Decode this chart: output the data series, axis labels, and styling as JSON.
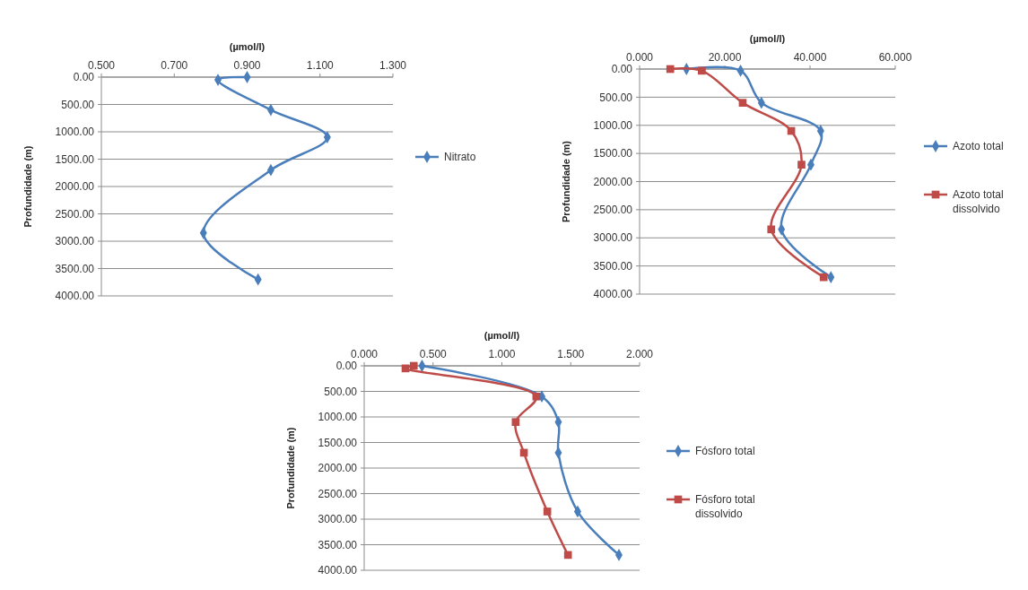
{
  "chart_data": [
    {
      "type": "line",
      "xlabel": "(µmol/l)",
      "ylabel": "Profundidade (m)",
      "legend": "right",
      "grid": "y",
      "xlim": [
        0.5,
        1.3
      ],
      "xticks": [
        {
          "value": 0.5,
          "label": "0.500"
        },
        {
          "value": 0.7,
          "label": "0.700"
        },
        {
          "value": 0.9,
          "label": "0.900"
        },
        {
          "value": 1.1,
          "label": "1.100"
        },
        {
          "value": 1.3,
          "label": "1.300"
        }
      ],
      "ylim": [
        4000,
        0
      ],
      "yticks": [
        {
          "value": 0,
          "label": "0.00"
        },
        {
          "value": 500,
          "label": "500.00"
        },
        {
          "value": 1000,
          "label": "1000.00"
        },
        {
          "value": 1500,
          "label": "1500.00"
        },
        {
          "value": 2000,
          "label": "2000.00"
        },
        {
          "value": 2500,
          "label": "2500.00"
        },
        {
          "value": 3000,
          "label": "3000.00"
        },
        {
          "value": 3500,
          "label": "3500.00"
        },
        {
          "value": 4000,
          "label": "4000.00"
        }
      ],
      "series": [
        {
          "name": "Nitrato",
          "color": "#4a7ebb",
          "marker": "diamond",
          "x": [
            0.9,
            0.82,
            0.965,
            1.12,
            0.965,
            0.78,
            0.93
          ],
          "values": [
            0,
            50,
            600,
            1100,
            1700,
            2850,
            3700
          ]
        }
      ]
    },
    {
      "type": "line",
      "xlabel": "(µmol/l)",
      "ylabel": "Profundidade (m)",
      "legend": "right",
      "grid": "y",
      "xlim": [
        0,
        60
      ],
      "xticks": [
        {
          "value": 0,
          "label": "0.000"
        },
        {
          "value": 20,
          "label": "20.000"
        },
        {
          "value": 40,
          "label": "40.000"
        },
        {
          "value": 60,
          "label": "60.000"
        }
      ],
      "ylim": [
        4000,
        0
      ],
      "yticks": [
        {
          "value": 0,
          "label": "0.00"
        },
        {
          "value": 500,
          "label": "500.00"
        },
        {
          "value": 1000,
          "label": "1000.00"
        },
        {
          "value": 1500,
          "label": "1500.00"
        },
        {
          "value": 2000,
          "label": "2000.00"
        },
        {
          "value": 2500,
          "label": "2500.00"
        },
        {
          "value": 3000,
          "label": "3000.00"
        },
        {
          "value": 3500,
          "label": "3500.00"
        },
        {
          "value": 4000,
          "label": "4000.00"
        }
      ],
      "series": [
        {
          "name": "Azoto total",
          "color": "#4a7ebb",
          "marker": "diamond",
          "x": [
            11,
            23.7,
            28.6,
            42.5,
            40.2,
            33.3,
            44.9
          ],
          "values": [
            0,
            30,
            600,
            1100,
            1700,
            2850,
            3700
          ]
        },
        {
          "name": "Azoto total dissolvido",
          "color": "#be4b48",
          "marker": "square",
          "x": [
            7.2,
            14.6,
            24.2,
            35.6,
            38,
            30.9,
            43.2
          ],
          "values": [
            0,
            30,
            600,
            1100,
            1700,
            2850,
            3700
          ]
        }
      ]
    },
    {
      "type": "line",
      "xlabel": "(µmol/l)",
      "ylabel": "Profundidade (m)",
      "legend": "right",
      "grid": "y",
      "xlim": [
        0,
        2
      ],
      "xticks": [
        {
          "value": 0,
          "label": "0.000"
        },
        {
          "value": 0.5,
          "label": "0.500"
        },
        {
          "value": 1,
          "label": "1.000"
        },
        {
          "value": 1.5,
          "label": "1.500"
        },
        {
          "value": 2,
          "label": "2.000"
        }
      ],
      "ylim": [
        4000,
        0
      ],
      "yticks": [
        {
          "value": 0,
          "label": "0.00"
        },
        {
          "value": 500,
          "label": "500.00"
        },
        {
          "value": 1000,
          "label": "1000.00"
        },
        {
          "value": 1500,
          "label": "1500.00"
        },
        {
          "value": 2000,
          "label": "2000.00"
        },
        {
          "value": 2500,
          "label": "2500.00"
        },
        {
          "value": 3000,
          "label": "3000.00"
        },
        {
          "value": 3500,
          "label": "3500.00"
        },
        {
          "value": 4000,
          "label": "4000.00"
        }
      ],
      "series": [
        {
          "name": "Fósforo total",
          "color": "#4a7ebb",
          "marker": "diamond",
          "x": [
            0.42,
            null,
            1.29,
            1.41,
            1.41,
            1.55,
            1.85
          ],
          "values": [
            0,
            null,
            600,
            1100,
            1700,
            2850,
            3700
          ]
        },
        {
          "name": "Fósforo total dissolvido",
          "color": "#be4b48",
          "marker": "square",
          "x": [
            0.36,
            0.3,
            1.25,
            1.1,
            1.16,
            1.33,
            1.48
          ],
          "values": [
            0,
            50,
            600,
            1100,
            1700,
            2850,
            3700
          ]
        }
      ]
    }
  ]
}
